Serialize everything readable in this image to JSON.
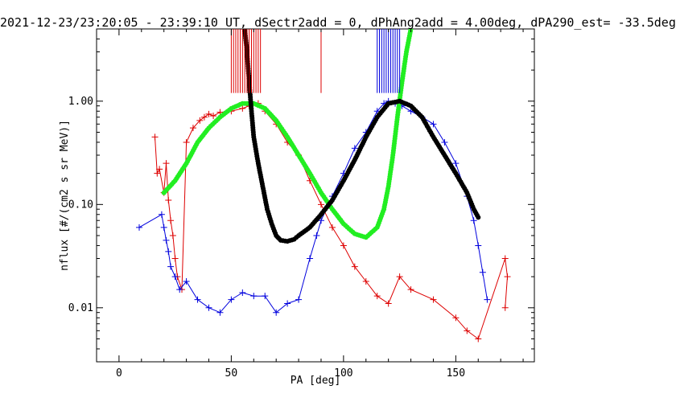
{
  "chart_data": {
    "type": "line",
    "title": "2021-12-23/23:20:05 - 23:39:10 UT, dSectr2add = 0, dPhAng2add = 4.00deg, dPA290_est= -33.5deg",
    "xlabel": "PA [deg]",
    "ylabel": "nflux [#/(cm2 s sr MeV)]",
    "xlim": [
      -10,
      185
    ],
    "ylim": [
      0.003,
      5.0
    ],
    "yscale": "log",
    "xticks": [
      0,
      50,
      100,
      150
    ],
    "xtick_labels": [
      "0",
      "50",
      "100",
      "150"
    ],
    "yticks": [
      0.01,
      0.1,
      1.0
    ],
    "ytick_labels": [
      "0.01",
      "0.10",
      "1.00"
    ],
    "grid": false,
    "colors": {
      "red": "#dd0000",
      "blue": "#0000dd",
      "green": "#22ee22",
      "black": "#000000"
    },
    "series": [
      {
        "color": "red",
        "style": "line+plus",
        "role": "measured red group",
        "points": [
          [
            16,
            0.45
          ],
          [
            17,
            0.2
          ],
          [
            18,
            0.22
          ],
          [
            20,
            0.13
          ],
          [
            21,
            0.25
          ],
          [
            22,
            0.11
          ],
          [
            23,
            0.07
          ],
          [
            24,
            0.05
          ],
          [
            25,
            0.03
          ],
          [
            26,
            0.02
          ],
          [
            28,
            0.015
          ],
          [
            30,
            0.4
          ],
          [
            33,
            0.55
          ],
          [
            36,
            0.65
          ],
          [
            38,
            0.7
          ],
          [
            40,
            0.75
          ],
          [
            42,
            0.72
          ],
          [
            45,
            0.78
          ],
          [
            50,
            0.8
          ],
          [
            55,
            0.85
          ],
          [
            58,
            0.9
          ],
          [
            62,
            0.95
          ],
          [
            65,
            0.8
          ],
          [
            70,
            0.6
          ],
          [
            75,
            0.4
          ],
          [
            80,
            0.3
          ],
          [
            85,
            0.17
          ],
          [
            90,
            0.1
          ],
          [
            95,
            0.06
          ],
          [
            100,
            0.04
          ],
          [
            105,
            0.025
          ],
          [
            110,
            0.018
          ],
          [
            115,
            0.013
          ],
          [
            120,
            0.011
          ],
          [
            125,
            0.02
          ],
          [
            130,
            0.015
          ],
          [
            140,
            0.012
          ],
          [
            150,
            0.008
          ],
          [
            155,
            0.006
          ],
          [
            160,
            0.005
          ],
          [
            172,
            0.03
          ],
          [
            173,
            0.02
          ],
          [
            172,
            0.01
          ]
        ]
      },
      {
        "color": "blue",
        "style": "line+plus",
        "role": "measured blue group",
        "points": [
          [
            9,
            0.06
          ],
          [
            19,
            0.08
          ],
          [
            20,
            0.06
          ],
          [
            21,
            0.045
          ],
          [
            22,
            0.035
          ],
          [
            23,
            0.025
          ],
          [
            25,
            0.02
          ],
          [
            27,
            0.015
          ],
          [
            30,
            0.018
          ],
          [
            35,
            0.012
          ],
          [
            40,
            0.01
          ],
          [
            45,
            0.009
          ],
          [
            50,
            0.012
          ],
          [
            55,
            0.014
          ],
          [
            60,
            0.013
          ],
          [
            65,
            0.013
          ],
          [
            70,
            0.009
          ],
          [
            75,
            0.011
          ],
          [
            80,
            0.012
          ],
          [
            85,
            0.03
          ],
          [
            88,
            0.05
          ],
          [
            90,
            0.07
          ],
          [
            95,
            0.12
          ],
          [
            100,
            0.2
          ],
          [
            105,
            0.35
          ],
          [
            110,
            0.5
          ],
          [
            115,
            0.8
          ],
          [
            118,
            0.95
          ],
          [
            120,
            1.0
          ],
          [
            123,
            0.95
          ],
          [
            126,
            0.9
          ],
          [
            130,
            0.8
          ],
          [
            135,
            0.7
          ],
          [
            140,
            0.6
          ],
          [
            145,
            0.4
          ],
          [
            150,
            0.25
          ],
          [
            155,
            0.12
          ],
          [
            158,
            0.07
          ],
          [
            160,
            0.04
          ],
          [
            162,
            0.022
          ],
          [
            164,
            0.012
          ]
        ]
      },
      {
        "color": "green",
        "style": "dots",
        "role": "model curve 1",
        "points": [
          [
            20,
            0.13
          ],
          [
            25,
            0.17
          ],
          [
            30,
            0.25
          ],
          [
            35,
            0.4
          ],
          [
            40,
            0.55
          ],
          [
            45,
            0.7
          ],
          [
            50,
            0.85
          ],
          [
            55,
            0.95
          ],
          [
            60,
            0.95
          ],
          [
            65,
            0.85
          ],
          [
            70,
            0.65
          ],
          [
            75,
            0.45
          ],
          [
            80,
            0.3
          ],
          [
            85,
            0.2
          ],
          [
            90,
            0.13
          ],
          [
            95,
            0.09
          ],
          [
            100,
            0.065
          ],
          [
            105,
            0.052
          ],
          [
            110,
            0.048
          ],
          [
            115,
            0.06
          ],
          [
            118,
            0.09
          ],
          [
            120,
            0.15
          ],
          [
            122,
            0.3
          ],
          [
            124,
            0.7
          ],
          [
            126,
            1.5
          ],
          [
            128,
            3.0
          ],
          [
            130,
            5.0
          ]
        ]
      },
      {
        "color": "black",
        "style": "dots",
        "role": "model curve 2",
        "points": [
          [
            56,
            5.0
          ],
          [
            57,
            3.0
          ],
          [
            58,
            1.5
          ],
          [
            59,
            0.8
          ],
          [
            60,
            0.45
          ],
          [
            62,
            0.25
          ],
          [
            64,
            0.15
          ],
          [
            66,
            0.09
          ],
          [
            68,
            0.065
          ],
          [
            70,
            0.05
          ],
          [
            72,
            0.045
          ],
          [
            75,
            0.044
          ],
          [
            78,
            0.046
          ],
          [
            80,
            0.05
          ],
          [
            85,
            0.06
          ],
          [
            90,
            0.08
          ],
          [
            95,
            0.11
          ],
          [
            100,
            0.17
          ],
          [
            105,
            0.27
          ],
          [
            110,
            0.45
          ],
          [
            115,
            0.7
          ],
          [
            120,
            0.95
          ],
          [
            125,
            1.0
          ],
          [
            130,
            0.9
          ],
          [
            135,
            0.7
          ],
          [
            140,
            0.45
          ],
          [
            145,
            0.3
          ],
          [
            150,
            0.2
          ],
          [
            155,
            0.13
          ],
          [
            158,
            0.09
          ],
          [
            160,
            0.075
          ]
        ]
      },
      {
        "color": "red",
        "style": "vlines",
        "role": "red vertical markers",
        "x": [
          50,
          51,
          52,
          53,
          54,
          55,
          56,
          57,
          58,
          59,
          60,
          61,
          62,
          63,
          90
        ]
      },
      {
        "color": "blue",
        "style": "vlines",
        "role": "blue vertical markers",
        "x": [
          115,
          116,
          117,
          118,
          119,
          120,
          121,
          122,
          123,
          124,
          125
        ]
      }
    ]
  }
}
